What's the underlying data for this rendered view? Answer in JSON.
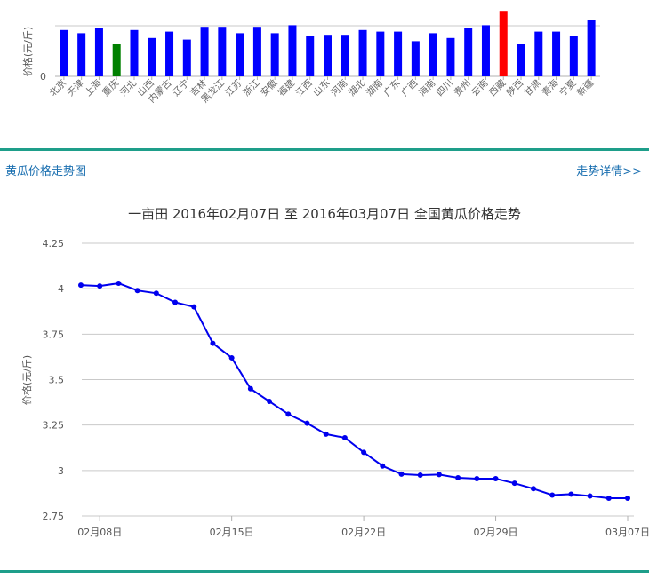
{
  "top_chart": {
    "title": "",
    "ylabel": "价格(元/斤)",
    "chart_data": {
      "type": "bar",
      "categories": [
        "北京",
        "天津",
        "上海",
        "重庆",
        "河北",
        "山西",
        "内蒙古",
        "辽宁",
        "吉林",
        "黑龙江",
        "江苏",
        "浙江",
        "安徽",
        "福建",
        "江西",
        "山东",
        "河南",
        "湖北",
        "湖南",
        "广东",
        "广西",
        "海南",
        "四川",
        "贵州",
        "云南",
        "西藏",
        "陕西",
        "甘肃",
        "青海",
        "宁夏",
        "新疆"
      ],
      "values": [
        2.9,
        2.7,
        3.0,
        2.0,
        2.9,
        2.4,
        2.8,
        2.3,
        3.1,
        3.1,
        2.7,
        3.1,
        2.7,
        3.2,
        2.5,
        2.6,
        2.6,
        2.9,
        2.8,
        2.8,
        2.2,
        2.7,
        2.4,
        3.0,
        3.2,
        4.1,
        2.0,
        2.8,
        2.8,
        2.5,
        3.5
      ],
      "highlight": {
        "min_index": 3,
        "max_index": 25
      },
      "y_ticks": [
        "0"
      ],
      "ylim": [
        0,
        5
      ],
      "colors": {
        "bar": "#0000ff",
        "min": "#008000",
        "max": "#ff0000"
      }
    }
  },
  "section": {
    "title": "黄瓜价格走势图",
    "link": "走势详情>>"
  },
  "chart_data": {
    "type": "line",
    "title": "一亩田 2016年02月07日 至 2016年03月07日 全国黄瓜价格走势",
    "xlabel": "",
    "ylabel": "价格(元/斤)",
    "x": [
      "02月07日",
      "02月08日",
      "02月09日",
      "02月10日",
      "02月11日",
      "02月12日",
      "02月13日",
      "02月14日",
      "02月15日",
      "02月16日",
      "02月17日",
      "02月18日",
      "02月19日",
      "02月20日",
      "02月21日",
      "02月22日",
      "02月23日",
      "02月24日",
      "02月25日",
      "02月26日",
      "02月27日",
      "02月28日",
      "02月29日",
      "03月01日",
      "03月02日",
      "03月03日",
      "03月04日",
      "03月05日",
      "03月06日",
      "03月07日"
    ],
    "series": [
      {
        "values": [
          4.02,
          4.015,
          4.03,
          3.99,
          3.975,
          3.925,
          3.9,
          3.7,
          3.62,
          3.45,
          3.38,
          3.31,
          3.26,
          3.2,
          3.18,
          3.1,
          3.025,
          2.98,
          2.975,
          2.978,
          2.96,
          2.955,
          2.955,
          2.93,
          2.9,
          2.865,
          2.87,
          2.86,
          2.848,
          2.848
        ],
        "color": "#0000ee"
      }
    ],
    "x_ticks": [
      "02月08日",
      "02月15日",
      "02月22日",
      "02月29日",
      "03月07日"
    ],
    "y_ticks": [
      "2.75",
      "3",
      "3.25",
      "3.5",
      "3.75",
      "4",
      "4.25"
    ],
    "ylim": [
      2.75,
      4.25
    ],
    "grid": true,
    "legend": "none"
  }
}
